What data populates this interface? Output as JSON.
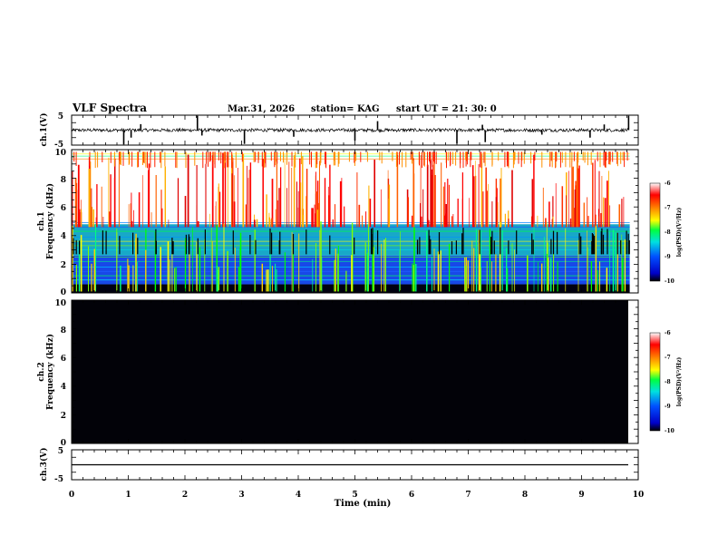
{
  "header": {
    "title": "VLF Spectra",
    "date": "Mar.31, 2026",
    "station": "station= KAG",
    "start": "start  UT =   21: 30: 0"
  },
  "chart_data": [
    {
      "type": "line",
      "name": "ch1-waveform",
      "ylabel": "ch.1(V)",
      "ylim": [
        -5,
        5
      ],
      "yticks": [
        "5",
        "-5"
      ],
      "xlim": [
        0,
        10
      ],
      "baseline": 0,
      "spikes": [
        {
          "x": 0.92,
          "y": -4.8
        },
        {
          "x": 1.22,
          "y": 2.0
        },
        {
          "x": 1.05,
          "y": -2.5
        },
        {
          "x": 2.22,
          "y": 4.8
        },
        {
          "x": 2.3,
          "y": -1.8
        },
        {
          "x": 3.05,
          "y": -4.6
        },
        {
          "x": 3.92,
          "y": -2.2
        },
        {
          "x": 5.0,
          "y": -3.5
        },
        {
          "x": 5.4,
          "y": 3.0
        },
        {
          "x": 6.8,
          "y": -4.5
        },
        {
          "x": 7.25,
          "y": 1.8
        },
        {
          "x": 7.3,
          "y": -4.0
        },
        {
          "x": 8.3,
          "y": -1.5
        },
        {
          "x": 9.15,
          "y": -2.5
        },
        {
          "x": 9.4,
          "y": 1.9
        },
        {
          "x": 9.83,
          "y": 4.8
        }
      ]
    },
    {
      "type": "heatmap",
      "name": "ch1-spectrogram",
      "ylabel": "ch.1\nFrequency (kHz)",
      "ylabel_line1": "ch.1",
      "ylabel_line2": "Frequency (kHz)",
      "ylim": [
        0,
        10
      ],
      "xlim": [
        0,
        9.85
      ],
      "yticks": [
        "0",
        "2",
        "4",
        "6",
        "8",
        "10"
      ],
      "colorbar": {
        "label": "log(PSD)(V²/Hz)",
        "range": [
          -10,
          -6
        ],
        "ticks": [
          "-6",
          "-7",
          "-8",
          "-9",
          "-10"
        ]
      },
      "description_bands_kHz": [
        {
          "from": 0.0,
          "to": 0.6,
          "level": -10
        },
        {
          "from": 0.6,
          "to": 2.6,
          "level": -9
        },
        {
          "from": 2.6,
          "to": 4.8,
          "level": -8.2
        },
        {
          "from": 4.8,
          "to": 9.6,
          "level": -6.2
        },
        {
          "from": 9.6,
          "to": 10.0,
          "level": -9.5
        }
      ]
    },
    {
      "type": "heatmap",
      "name": "ch2-spectrogram",
      "ylabel_line1": "ch.2",
      "ylabel_line2": "Frequency (kHz)",
      "ylim": [
        0,
        10
      ],
      "xlim": [
        0,
        9.85
      ],
      "yticks": [
        "0",
        "2",
        "4",
        "6",
        "8",
        "10"
      ],
      "colorbar": {
        "label": "log(PSD)(V²/Hz)",
        "range": [
          -10,
          -6
        ],
        "ticks": [
          "-6",
          "-7",
          "-8",
          "-9",
          "-10"
        ]
      },
      "level": -10
    },
    {
      "type": "line",
      "name": "ch3-waveform",
      "ylabel": "ch.3(V)",
      "ylim": [
        -5,
        5
      ],
      "yticks": [
        "5",
        "-5"
      ],
      "xlim": [
        0,
        10
      ],
      "baseline": 0
    }
  ],
  "xaxis": {
    "label": "Time  (min)",
    "ticks": [
      "0",
      "1",
      "2",
      "3",
      "4",
      "5",
      "6",
      "7",
      "8",
      "9",
      "10"
    ]
  }
}
